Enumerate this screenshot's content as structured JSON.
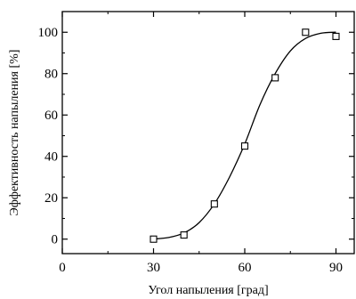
{
  "chart_data": {
    "type": "scatter",
    "title": "",
    "xlabel": "Угол напыления [град]",
    "ylabel": "Эффективность напыления [%]",
    "xlim": [
      0,
      96
    ],
    "ylim": [
      -7,
      110
    ],
    "x_ticks": [
      0,
      30,
      60,
      90
    ],
    "y_ticks": [
      0,
      20,
      40,
      60,
      80,
      100
    ],
    "grid": false,
    "legend": "none",
    "series": [
      {
        "marker": "open-square",
        "x": [
          30,
          40,
          50,
          60,
          70,
          80,
          90
        ],
        "y": [
          0,
          2,
          17,
          45,
          78,
          100,
          98
        ]
      }
    ],
    "fit_curve": {
      "style": "smooth-line",
      "x": [
        30,
        35,
        40,
        45,
        50,
        55,
        60,
        65,
        70,
        75,
        80,
        85,
        90
      ],
      "y": [
        0,
        0.8,
        3,
        8,
        17,
        30,
        46,
        65,
        80,
        91,
        97,
        99.5,
        100
      ]
    }
  }
}
